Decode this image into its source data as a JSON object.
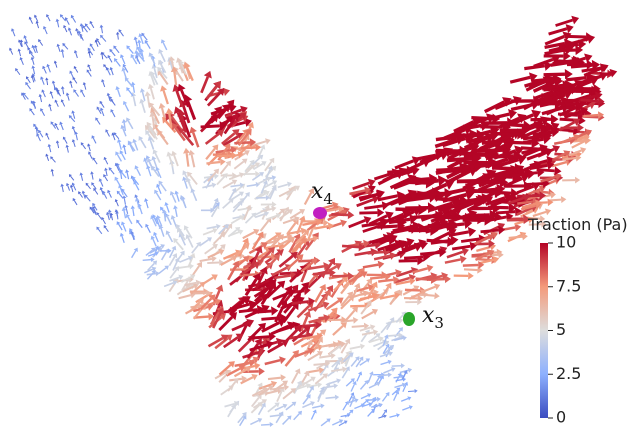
{
  "markers": [
    {
      "label": "x",
      "subscript": "4"
    },
    {
      "label": "x",
      "subscript": "3"
    }
  ],
  "colorbar": {
    "title": "Traction (Pa)",
    "range": [
      0,
      10
    ],
    "ticks": [
      0,
      2.5,
      5,
      7.5,
      10
    ]
  }
}
